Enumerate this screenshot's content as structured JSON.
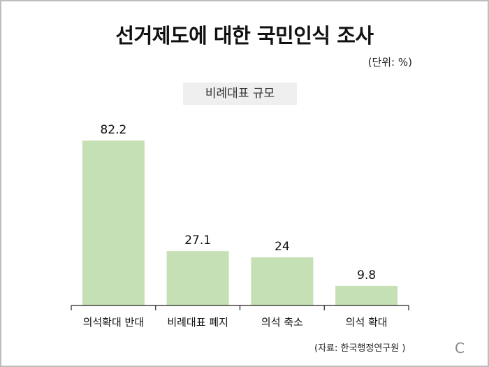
{
  "title": "선거제도에 대한 국민인식 조사",
  "unit": "(단위: %)",
  "source": "(자료: 한국행정연구원 )",
  "logo_text": "C",
  "chart_data": {
    "type": "bar",
    "title": "선거제도에 대한 국민인식 조사",
    "subtitle": "비례대표 규모",
    "categories": [
      "의석확대 반대",
      "비례대표 폐지",
      "의석 축소",
      "의석 확대"
    ],
    "values": [
      82.2,
      27.1,
      24,
      9.8
    ],
    "value_labels": [
      "82.2",
      "27.1",
      "24",
      "9.8"
    ],
    "ylim": [
      0,
      100
    ],
    "bar_color": "#c5e0b4",
    "grid": false,
    "legend": "none"
  }
}
